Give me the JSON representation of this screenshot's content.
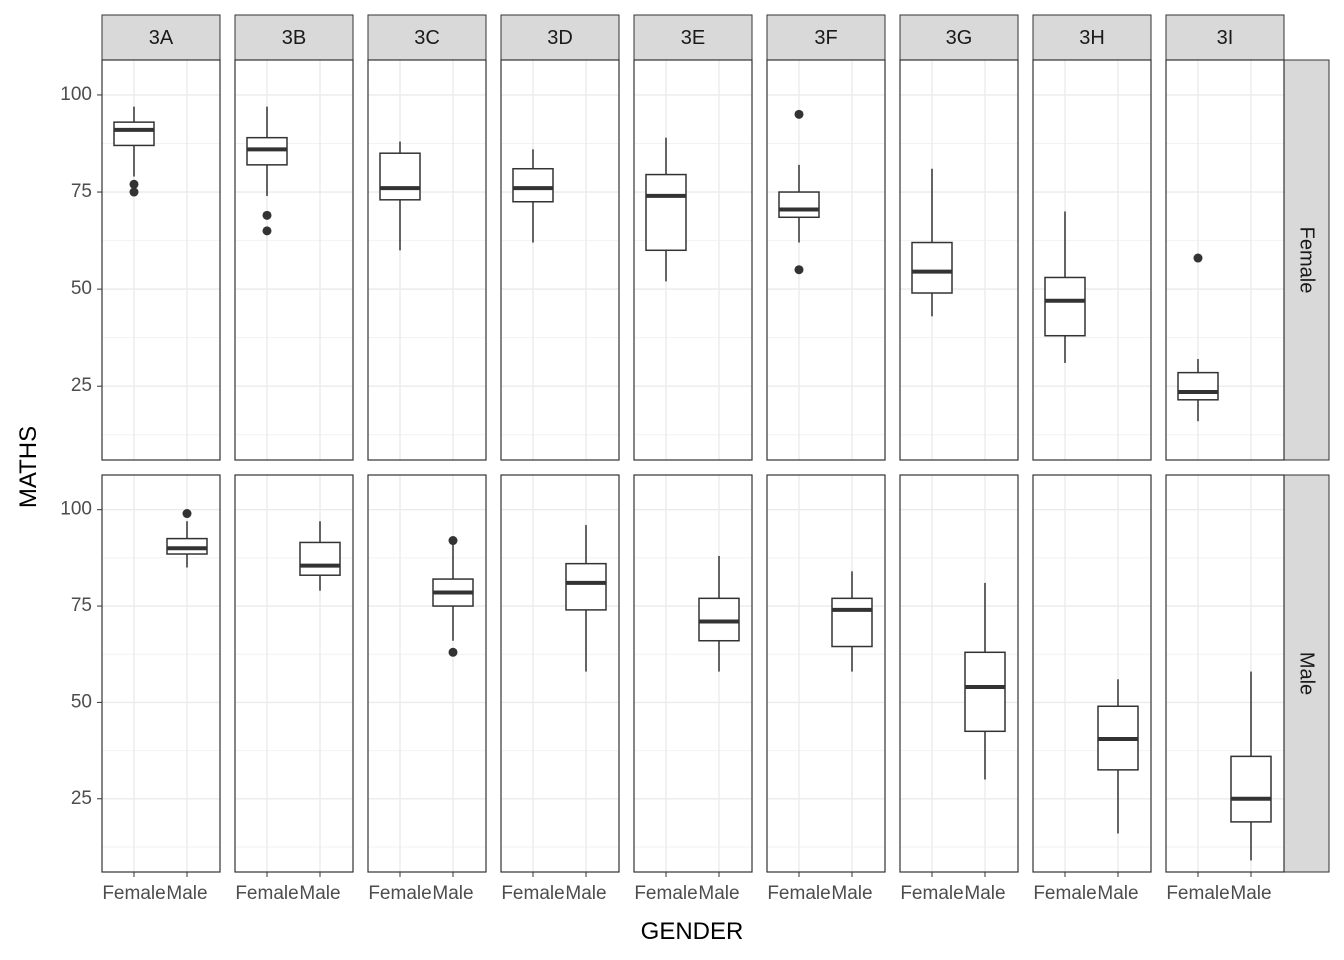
{
  "chart_data": {
    "type": "boxplot",
    "facet_columns": [
      "3A",
      "3B",
      "3C",
      "3D",
      "3E",
      "3F",
      "3G",
      "3H",
      "3I"
    ],
    "facet_rows": [
      "Female",
      "Male"
    ],
    "x_categories": [
      "Female",
      "Male"
    ],
    "xlabel": "GENDER",
    "ylabel": "MATHS",
    "ylim": [
      6,
      109
    ],
    "yticks": [
      25,
      50,
      75,
      100
    ],
    "grid": true,
    "panels": {
      "Female": {
        "3A": {
          "category": "Female",
          "min": 79,
          "q1": 87,
          "median": 91,
          "q3": 93,
          "max": 97,
          "outliers": [
            77,
            75
          ]
        },
        "3B": {
          "category": "Female",
          "min": 74,
          "q1": 82,
          "median": 86,
          "q3": 89,
          "max": 97,
          "outliers": [
            69,
            65
          ]
        },
        "3C": {
          "category": "Female",
          "min": 60,
          "q1": 73,
          "median": 76,
          "q3": 85,
          "max": 88,
          "outliers": []
        },
        "3D": {
          "category": "Female",
          "min": 62,
          "q1": 72.5,
          "median": 76,
          "q3": 81,
          "max": 86,
          "outliers": []
        },
        "3E": {
          "category": "Female",
          "min": 52,
          "q1": 60,
          "median": 74,
          "q3": 79.5,
          "max": 89,
          "outliers": []
        },
        "3F": {
          "category": "Female",
          "min": 62,
          "q1": 68.5,
          "median": 70.5,
          "q3": 75,
          "max": 82,
          "outliers": [
            95,
            55
          ]
        },
        "3G": {
          "category": "Female",
          "min": 43,
          "q1": 49,
          "median": 54.5,
          "q3": 62,
          "max": 81,
          "outliers": []
        },
        "3H": {
          "category": "Female",
          "min": 31,
          "q1": 38,
          "median": 47,
          "q3": 53,
          "max": 70,
          "outliers": []
        },
        "3I": {
          "category": "Female",
          "min": 16,
          "q1": 21.5,
          "median": 23.5,
          "q3": 28.5,
          "max": 32,
          "outliers": [
            58
          ]
        }
      },
      "Male": {
        "3A": {
          "category": "Male",
          "min": 85,
          "q1": 88.5,
          "median": 90,
          "q3": 92.5,
          "max": 97,
          "outliers": [
            99
          ]
        },
        "3B": {
          "category": "Male",
          "min": 79,
          "q1": 83,
          "median": 85.5,
          "q3": 91.5,
          "max": 97,
          "outliers": []
        },
        "3C": {
          "category": "Male",
          "min": 66,
          "q1": 75,
          "median": 78.5,
          "q3": 82,
          "max": 91,
          "outliers": [
            92,
            63
          ]
        },
        "3D": {
          "category": "Male",
          "min": 58,
          "q1": 74,
          "median": 81,
          "q3": 86,
          "max": 96,
          "outliers": []
        },
        "3E": {
          "category": "Male",
          "min": 58,
          "q1": 66,
          "median": 71,
          "q3": 77,
          "max": 88,
          "outliers": []
        },
        "3F": {
          "category": "Male",
          "min": 58,
          "q1": 64.5,
          "median": 74,
          "q3": 77,
          "max": 84,
          "outliers": []
        },
        "3G": {
          "category": "Male",
          "min": 30,
          "q1": 42.5,
          "median": 54,
          "q3": 63,
          "max": 81,
          "outliers": []
        },
        "3H": {
          "category": "Male",
          "min": 16,
          "q1": 32.5,
          "median": 40.5,
          "q3": 49,
          "max": 56,
          "outliers": []
        },
        "3I": {
          "category": "Male",
          "min": 9,
          "q1": 19,
          "median": 25,
          "q3": 36,
          "max": 58,
          "outliers": []
        }
      }
    }
  }
}
